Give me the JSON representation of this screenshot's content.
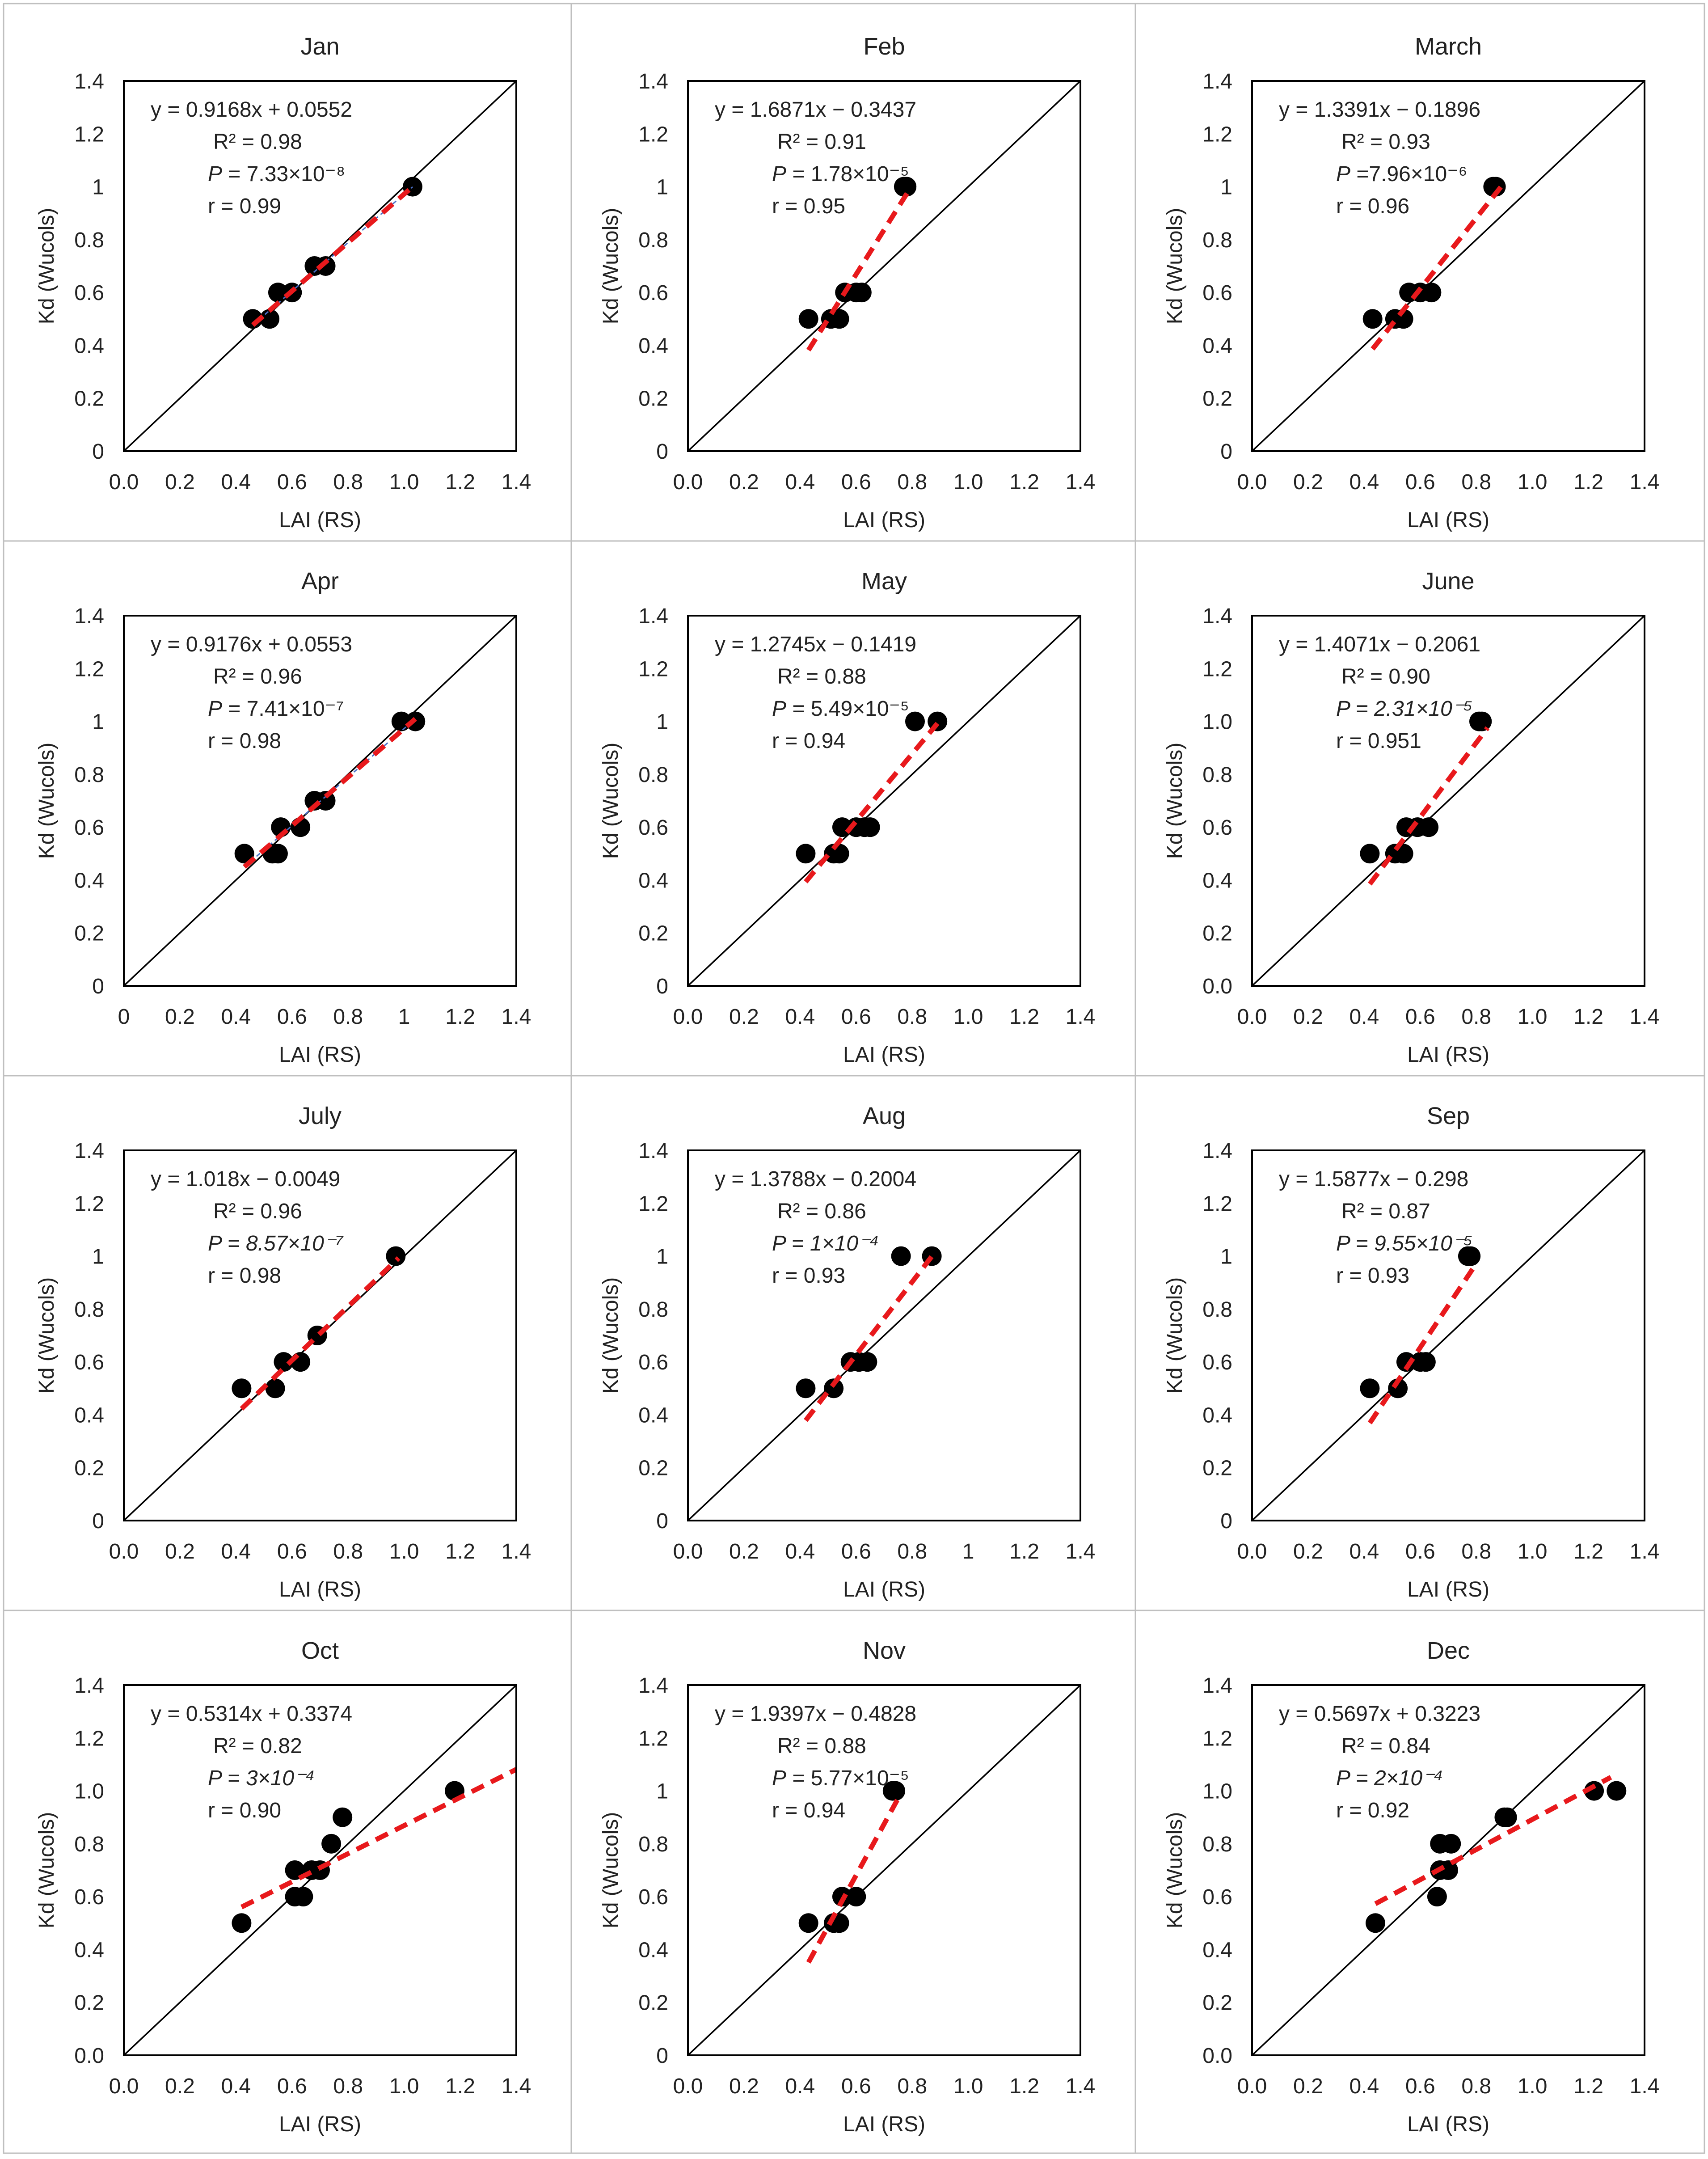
{
  "colors": {
    "points": "#000000",
    "reference_line": "#000000",
    "fit_line": "#e8191c",
    "fit_line_aux": "#4a6fc7",
    "grid_separator": "#bfbfbf"
  },
  "chart_data": [
    {
      "type": "scatter",
      "title": "Jan",
      "xlabel": "LAI (RS)",
      "ylabel": "Kd (Wucols)",
      "xlim": [
        0,
        1.4
      ],
      "ylim": [
        0,
        1.4
      ],
      "xticks": [
        "0.0",
        "0.2",
        "0.4",
        "0.6",
        "0.8",
        "1.0",
        "1.2",
        "1.4"
      ],
      "yticks": [
        "0",
        "0.2",
        "0.4",
        "0.6",
        "0.8",
        "1",
        "1.2",
        "1.4"
      ],
      "reference_line": "1:1",
      "points": [
        [
          0.46,
          0.5
        ],
        [
          0.52,
          0.5
        ],
        [
          0.55,
          0.6
        ],
        [
          0.6,
          0.6
        ],
        [
          0.68,
          0.7
        ],
        [
          0.72,
          0.7
        ],
        [
          1.03,
          1.0
        ]
      ],
      "fit": {
        "slope": 0.9168,
        "intercept": 0.0552,
        "x_range": [
          0.46,
          1.03
        ],
        "aux_line": true
      },
      "annotation": {
        "equation": "y = 0.9168x + 0.0552",
        "r2": "R² = 0.98",
        "p_label": "P",
        "p_value": " = 7.33×10⁻⁸",
        "p_italic_value": false,
        "r": "r = 0.99"
      },
      "gridlines": false,
      "legend": "none"
    },
    {
      "type": "scatter",
      "title": "Feb",
      "xlabel": "LAI (RS)",
      "ylabel": "Kd (Wucols)",
      "xlim": [
        0,
        1.4
      ],
      "ylim": [
        0,
        1.4
      ],
      "xticks": [
        "0.0",
        "0.2",
        "0.4",
        "0.6",
        "0.8",
        "1.0",
        "1.2",
        "1.4"
      ],
      "yticks": [
        "0",
        "0.2",
        "0.4",
        "0.6",
        "0.8",
        "1",
        "1.2",
        "1.4"
      ],
      "reference_line": "1:1",
      "points": [
        [
          0.43,
          0.5
        ],
        [
          0.51,
          0.5
        ],
        [
          0.54,
          0.5
        ],
        [
          0.56,
          0.6
        ],
        [
          0.6,
          0.6
        ],
        [
          0.62,
          0.6
        ],
        [
          0.77,
          1.0
        ],
        [
          0.78,
          1.0
        ]
      ],
      "fit": {
        "slope": 1.6871,
        "intercept": -0.3437,
        "x_range": [
          0.43,
          0.79
        ],
        "aux_line": false
      },
      "annotation": {
        "equation": "y = 1.6871x − 0.3437",
        "r2": "R² = 0.91",
        "p_label": "P",
        "p_value": " = 1.78×10⁻⁵",
        "p_italic_value": false,
        "r": "r = 0.95"
      },
      "gridlines": false,
      "legend": "none"
    },
    {
      "type": "scatter",
      "title": "March",
      "xlabel": "LAI (RS)",
      "ylabel": "Kd (Wucols)",
      "xlim": [
        0,
        1.4
      ],
      "ylim": [
        0,
        1.4
      ],
      "xticks": [
        "0.0",
        "0.2",
        "0.4",
        "0.6",
        "0.8",
        "1.0",
        "1.2",
        "1.4"
      ],
      "yticks": [
        "0",
        "0.2",
        "0.4",
        "0.6",
        "0.8",
        "1",
        "1.2",
        "1.4"
      ],
      "reference_line": "1:1",
      "points": [
        [
          0.43,
          0.5
        ],
        [
          0.51,
          0.5
        ],
        [
          0.54,
          0.5
        ],
        [
          0.56,
          0.6
        ],
        [
          0.6,
          0.6
        ],
        [
          0.64,
          0.6
        ],
        [
          0.86,
          1.0
        ],
        [
          0.87,
          1.0
        ]
      ],
      "fit": {
        "slope": 1.3391,
        "intercept": -0.1896,
        "x_range": [
          0.43,
          0.89
        ],
        "aux_line": false
      },
      "annotation": {
        "equation": "y = 1.3391x − 0.1896",
        "r2": "R² = 0.93",
        "p_label": "P",
        "p_value": " =7.96×10⁻⁶",
        "p_italic_value": false,
        "r": "r = 0.96"
      },
      "gridlines": false,
      "legend": "none"
    },
    {
      "type": "scatter",
      "title": "Apr",
      "xlabel": "LAI (RS)",
      "ylabel": "Kd (Wucols)",
      "xlim": [
        0,
        1.4
      ],
      "ylim": [
        0,
        1.4
      ],
      "xticks": [
        "0",
        "0.2",
        "0.4",
        "0.6",
        "0.8",
        "1",
        "1.2",
        "1.4"
      ],
      "yticks": [
        "0",
        "0.2",
        "0.4",
        "0.6",
        "0.8",
        "1",
        "1.2",
        "1.4"
      ],
      "reference_line": "1:1",
      "points": [
        [
          0.43,
          0.5
        ],
        [
          0.53,
          0.5
        ],
        [
          0.55,
          0.5
        ],
        [
          0.56,
          0.6
        ],
        [
          0.63,
          0.6
        ],
        [
          0.68,
          0.7
        ],
        [
          0.72,
          0.7
        ],
        [
          0.99,
          1.0
        ],
        [
          1.04,
          1.0
        ]
      ],
      "fit": {
        "slope": 0.9176,
        "intercept": 0.0553,
        "x_range": [
          0.43,
          1.04
        ],
        "aux_line": true
      },
      "annotation": {
        "equation": "y = 0.9176x + 0.0553",
        "r2": "R² = 0.96",
        "p_label": "P",
        "p_value": " = 7.41×10⁻⁷",
        "p_italic_value": false,
        "r": "r = 0.98"
      },
      "gridlines": false,
      "legend": "none"
    },
    {
      "type": "scatter",
      "title": "May",
      "xlabel": "LAI (RS)",
      "ylabel": "Kd (Wucols)",
      "xlim": [
        0,
        1.4
      ],
      "ylim": [
        0,
        1.4
      ],
      "xticks": [
        "0.0",
        "0.2",
        "0.4",
        "0.6",
        "0.8",
        "1.0",
        "1.2",
        "1.4"
      ],
      "yticks": [
        "0",
        "0.2",
        "0.4",
        "0.6",
        "0.8",
        "1",
        "1.2",
        "1.4"
      ],
      "reference_line": "1:1",
      "points": [
        [
          0.42,
          0.5
        ],
        [
          0.52,
          0.5
        ],
        [
          0.54,
          0.5
        ],
        [
          0.55,
          0.6
        ],
        [
          0.6,
          0.6
        ],
        [
          0.63,
          0.6
        ],
        [
          0.65,
          0.6
        ],
        [
          0.81,
          1.0
        ],
        [
          0.89,
          1.0
        ]
      ],
      "fit": {
        "slope": 1.2745,
        "intercept": -0.1419,
        "x_range": [
          0.42,
          0.89
        ],
        "aux_line": false
      },
      "annotation": {
        "equation": "y = 1.2745x − 0.1419",
        "r2": "R² = 0.88",
        "p_label": "P",
        "p_value": " = 5.49×10⁻⁵",
        "p_italic_value": false,
        "r": "r =  0.94"
      },
      "gridlines": false,
      "legend": "none"
    },
    {
      "type": "scatter",
      "title": "June",
      "xlabel": "LAI (RS)",
      "ylabel": "Kd (Wucols)",
      "xlim": [
        0,
        1.4
      ],
      "ylim": [
        0,
        1.4
      ],
      "xticks": [
        "0.0",
        "0.2",
        "0.4",
        "0.6",
        "0.8",
        "1.0",
        "1.2",
        "1.4"
      ],
      "yticks": [
        "0.0",
        "0.2",
        "0.4",
        "0.6",
        "0.8",
        "1.0",
        "1.2",
        "1.4"
      ],
      "reference_line": "1:1",
      "points": [
        [
          0.42,
          0.5
        ],
        [
          0.51,
          0.5
        ],
        [
          0.54,
          0.5
        ],
        [
          0.55,
          0.6
        ],
        [
          0.59,
          0.6
        ],
        [
          0.63,
          0.6
        ],
        [
          0.81,
          1.0
        ],
        [
          0.82,
          1.0
        ]
      ],
      "fit": {
        "slope": 1.4071,
        "intercept": -0.2061,
        "x_range": [
          0.42,
          0.84
        ],
        "aux_line": false
      },
      "annotation": {
        "equation": "y = 1.4071x − 0.2061",
        "r2": "R² = 0.90",
        "p_label": "P",
        "p_value": " = 2.31×10⁻⁵",
        "p_italic_value": true,
        "r": "r = 0.951"
      },
      "gridlines": false,
      "legend": "none"
    },
    {
      "type": "scatter",
      "title": "July",
      "xlabel": "LAI (RS)",
      "ylabel": "Kd (Wucols)",
      "xlim": [
        0,
        1.4
      ],
      "ylim": [
        0,
        1.4
      ],
      "xticks": [
        "0.0",
        "0.2",
        "0.4",
        "0.6",
        "0.8",
        "1.0",
        "1.2",
        "1.4"
      ],
      "yticks": [
        "0",
        "0.2",
        "0.4",
        "0.6",
        "0.8",
        "1",
        "1.2",
        "1.4"
      ],
      "reference_line": "1:1",
      "points": [
        [
          0.42,
          0.5
        ],
        [
          0.54,
          0.5
        ],
        [
          0.57,
          0.6
        ],
        [
          0.63,
          0.6
        ],
        [
          0.69,
          0.7
        ],
        [
          0.97,
          1.0
        ]
      ],
      "fit": {
        "slope": 1.018,
        "intercept": -0.0049,
        "x_range": [
          0.42,
          0.98
        ],
        "aux_line": false
      },
      "annotation": {
        "equation": "y = 1.018x − 0.0049",
        "r2": "R² = 0.96",
        "p_label": "P",
        "p_value": " = 8.57×10⁻⁷",
        "p_italic_value": true,
        "r": "r = 0.98"
      },
      "gridlines": false,
      "legend": "none"
    },
    {
      "type": "scatter",
      "title": "Aug",
      "xlabel": "LAI (RS)",
      "ylabel": "Kd (Wucols)",
      "xlim": [
        0,
        1.4
      ],
      "ylim": [
        0,
        1.4
      ],
      "xticks": [
        "0.0",
        "0.2",
        "0.4",
        "0.6",
        "0.8",
        "1",
        "1.2",
        "1.4"
      ],
      "yticks": [
        "0",
        "0.2",
        "0.4",
        "0.6",
        "0.8",
        "1",
        "1.2",
        "1.4"
      ],
      "reference_line": "1:1",
      "points": [
        [
          0.42,
          0.5
        ],
        [
          0.52,
          0.5
        ],
        [
          0.58,
          0.6
        ],
        [
          0.61,
          0.6
        ],
        [
          0.64,
          0.6
        ],
        [
          0.76,
          1.0
        ],
        [
          0.87,
          1.0
        ]
      ],
      "fit": {
        "slope": 1.3788,
        "intercept": -0.2004,
        "x_range": [
          0.42,
          0.87
        ],
        "aux_line": false
      },
      "annotation": {
        "equation": "y = 1.3788x − 0.2004",
        "r2": "R² = 0.86",
        "p_label": "P",
        "p_value": " = 1×10⁻⁴",
        "p_italic_value": true,
        "r": "r = 0.93"
      },
      "gridlines": false,
      "legend": "none"
    },
    {
      "type": "scatter",
      "title": "Sep",
      "xlabel": "LAI (RS)",
      "ylabel": "Kd (Wucols)",
      "xlim": [
        0,
        1.4
      ],
      "ylim": [
        0,
        1.4
      ],
      "xticks": [
        "0.0",
        "0.2",
        "0.4",
        "0.6",
        "0.8",
        "1.0",
        "1.2",
        "1.4"
      ],
      "yticks": [
        "0",
        "0.2",
        "0.4",
        "0.6",
        "0.8",
        "1",
        "1.2",
        "1.4"
      ],
      "reference_line": "1:1",
      "points": [
        [
          0.42,
          0.5
        ],
        [
          0.52,
          0.5
        ],
        [
          0.55,
          0.6
        ],
        [
          0.6,
          0.6
        ],
        [
          0.62,
          0.6
        ],
        [
          0.77,
          1.0
        ],
        [
          0.78,
          1.0
        ]
      ],
      "fit": {
        "slope": 1.5877,
        "intercept": -0.298,
        "x_range": [
          0.42,
          0.8
        ],
        "aux_line": false
      },
      "annotation": {
        "equation": "y = 1.5877x − 0.298",
        "r2": "R² = 0.87",
        "p_label": "P",
        "p_value": " = 9.55×10⁻⁵",
        "p_italic_value": true,
        "r": "r = 0.93"
      },
      "gridlines": false,
      "legend": "none"
    },
    {
      "type": "scatter",
      "title": "Oct",
      "xlabel": "LAI (RS)",
      "ylabel": "Kd (Wucols)",
      "xlim": [
        0,
        1.4
      ],
      "ylim": [
        0,
        1.4
      ],
      "xticks": [
        "0.0",
        "0.2",
        "0.4",
        "0.6",
        "0.8",
        "1.0",
        "1.2",
        "1.4"
      ],
      "yticks": [
        "0.0",
        "0.2",
        "0.4",
        "0.6",
        "0.8",
        "1.0",
        "1.2",
        "1.4"
      ],
      "reference_line": "1:1",
      "points": [
        [
          0.42,
          0.5
        ],
        [
          0.61,
          0.6
        ],
        [
          0.64,
          0.6
        ],
        [
          0.61,
          0.7
        ],
        [
          0.67,
          0.7
        ],
        [
          0.7,
          0.7
        ],
        [
          0.74,
          0.8
        ],
        [
          0.78,
          0.9
        ],
        [
          1.18,
          1.0
        ]
      ],
      "fit": {
        "slope": 0.5314,
        "intercept": 0.3374,
        "x_range": [
          0.42,
          1.4
        ],
        "aux_line": false
      },
      "annotation": {
        "equation": "y = 0.5314x + 0.3374",
        "r2": "R² = 0.82",
        "p_label": "P",
        "p_value": " = 3×10⁻⁴",
        "p_italic_value": true,
        "r": "r = 0.90"
      },
      "gridlines": false,
      "legend": "none"
    },
    {
      "type": "scatter",
      "title": "Nov",
      "xlabel": "LAI (RS)",
      "ylabel": "Kd (Wucols)",
      "xlim": [
        0,
        1.4
      ],
      "ylim": [
        0,
        1.4
      ],
      "xticks": [
        "0.0",
        "0.2",
        "0.4",
        "0.6",
        "0.8",
        "1.0",
        "1.2",
        "1.4"
      ],
      "yticks": [
        "0",
        "0.2",
        "0.4",
        "0.6",
        "0.8",
        "1",
        "1.2",
        "1.4"
      ],
      "reference_line": "1:1",
      "points": [
        [
          0.43,
          0.5
        ],
        [
          0.52,
          0.5
        ],
        [
          0.54,
          0.5
        ],
        [
          0.55,
          0.6
        ],
        [
          0.6,
          0.6
        ],
        [
          0.73,
          1.0
        ],
        [
          0.74,
          1.0
        ]
      ],
      "fit": {
        "slope": 1.9397,
        "intercept": -0.4828,
        "x_range": [
          0.43,
          0.76
        ],
        "aux_line": false
      },
      "annotation": {
        "equation": "y = 1.9397x − 0.4828",
        "r2": "R² = 0.88",
        "p_label": "P",
        "p_value": " =  5.77×10⁻⁵",
        "p_italic_value": false,
        "r": "r = 0.94"
      },
      "gridlines": false,
      "legend": "none"
    },
    {
      "type": "scatter",
      "title": "Dec",
      "xlabel": "LAI (RS)",
      "ylabel": "Kd (Wucols)",
      "xlim": [
        0,
        1.4
      ],
      "ylim": [
        0,
        1.4
      ],
      "xticks": [
        "0.0",
        "0.2",
        "0.4",
        "0.6",
        "0.8",
        "1.0",
        "1.2",
        "1.4"
      ],
      "yticks": [
        "0.0",
        "0.2",
        "0.4",
        "0.6",
        "0.8",
        "1.0",
        "1.2",
        "1.4"
      ],
      "reference_line": "1:1",
      "points": [
        [
          0.44,
          0.5
        ],
        [
          0.66,
          0.6
        ],
        [
          0.67,
          0.7
        ],
        [
          0.7,
          0.7
        ],
        [
          0.67,
          0.8
        ],
        [
          0.71,
          0.8
        ],
        [
          0.9,
          0.9
        ],
        [
          0.91,
          0.9
        ],
        [
          1.22,
          1.0
        ],
        [
          1.3,
          1.0
        ]
      ],
      "fit": {
        "slope": 0.5697,
        "intercept": 0.3223,
        "x_range": [
          0.44,
          1.28
        ],
        "aux_line": false
      },
      "annotation": {
        "equation": "y = 0.5697x + 0.3223",
        "r2": "R² = 0.84",
        "p_label": "P",
        "p_value": " = 2×10⁻⁴",
        "p_italic_value": true,
        "r": "r = 0.92"
      },
      "gridlines": false,
      "legend": "none"
    }
  ]
}
